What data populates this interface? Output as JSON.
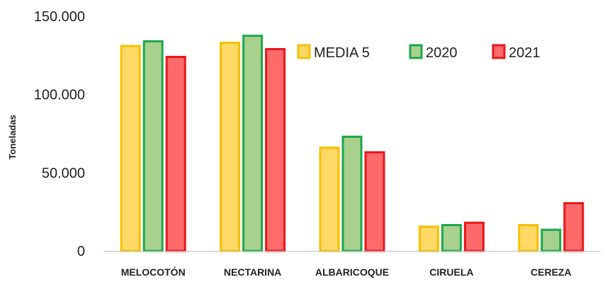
{
  "chart_data": {
    "type": "bar",
    "title": "",
    "xlabel": "",
    "ylabel": "Toneladas",
    "ylim": [
      0,
      150000
    ],
    "y_ticks": [
      {
        "value": 0,
        "label": "0"
      },
      {
        "value": 50000,
        "label": "50.000"
      },
      {
        "value": 100000,
        "label": "100.000"
      },
      {
        "value": 150000,
        "label": "150.000"
      }
    ],
    "categories": [
      "MELOCOTÓN",
      "NECTARINA",
      "ALBARICOQUE",
      "CIRUELA",
      "CEREZA"
    ],
    "series": [
      {
        "name": "MEDIA 5",
        "fill": "#FFD966",
        "stroke": "#F5C000",
        "values": [
          131000,
          133000,
          66000,
          15500,
          16500
        ]
      },
      {
        "name": "2020",
        "fill": "#A9D18E",
        "stroke": "#1BA84A",
        "values": [
          134000,
          137500,
          73000,
          16500,
          13500
        ]
      },
      {
        "name": "2021",
        "fill": "#FF6B6B",
        "stroke": "#E8161B",
        "values": [
          124000,
          129000,
          63000,
          18000,
          30500
        ]
      }
    ],
    "legend_position": "top-right",
    "grid": false
  }
}
